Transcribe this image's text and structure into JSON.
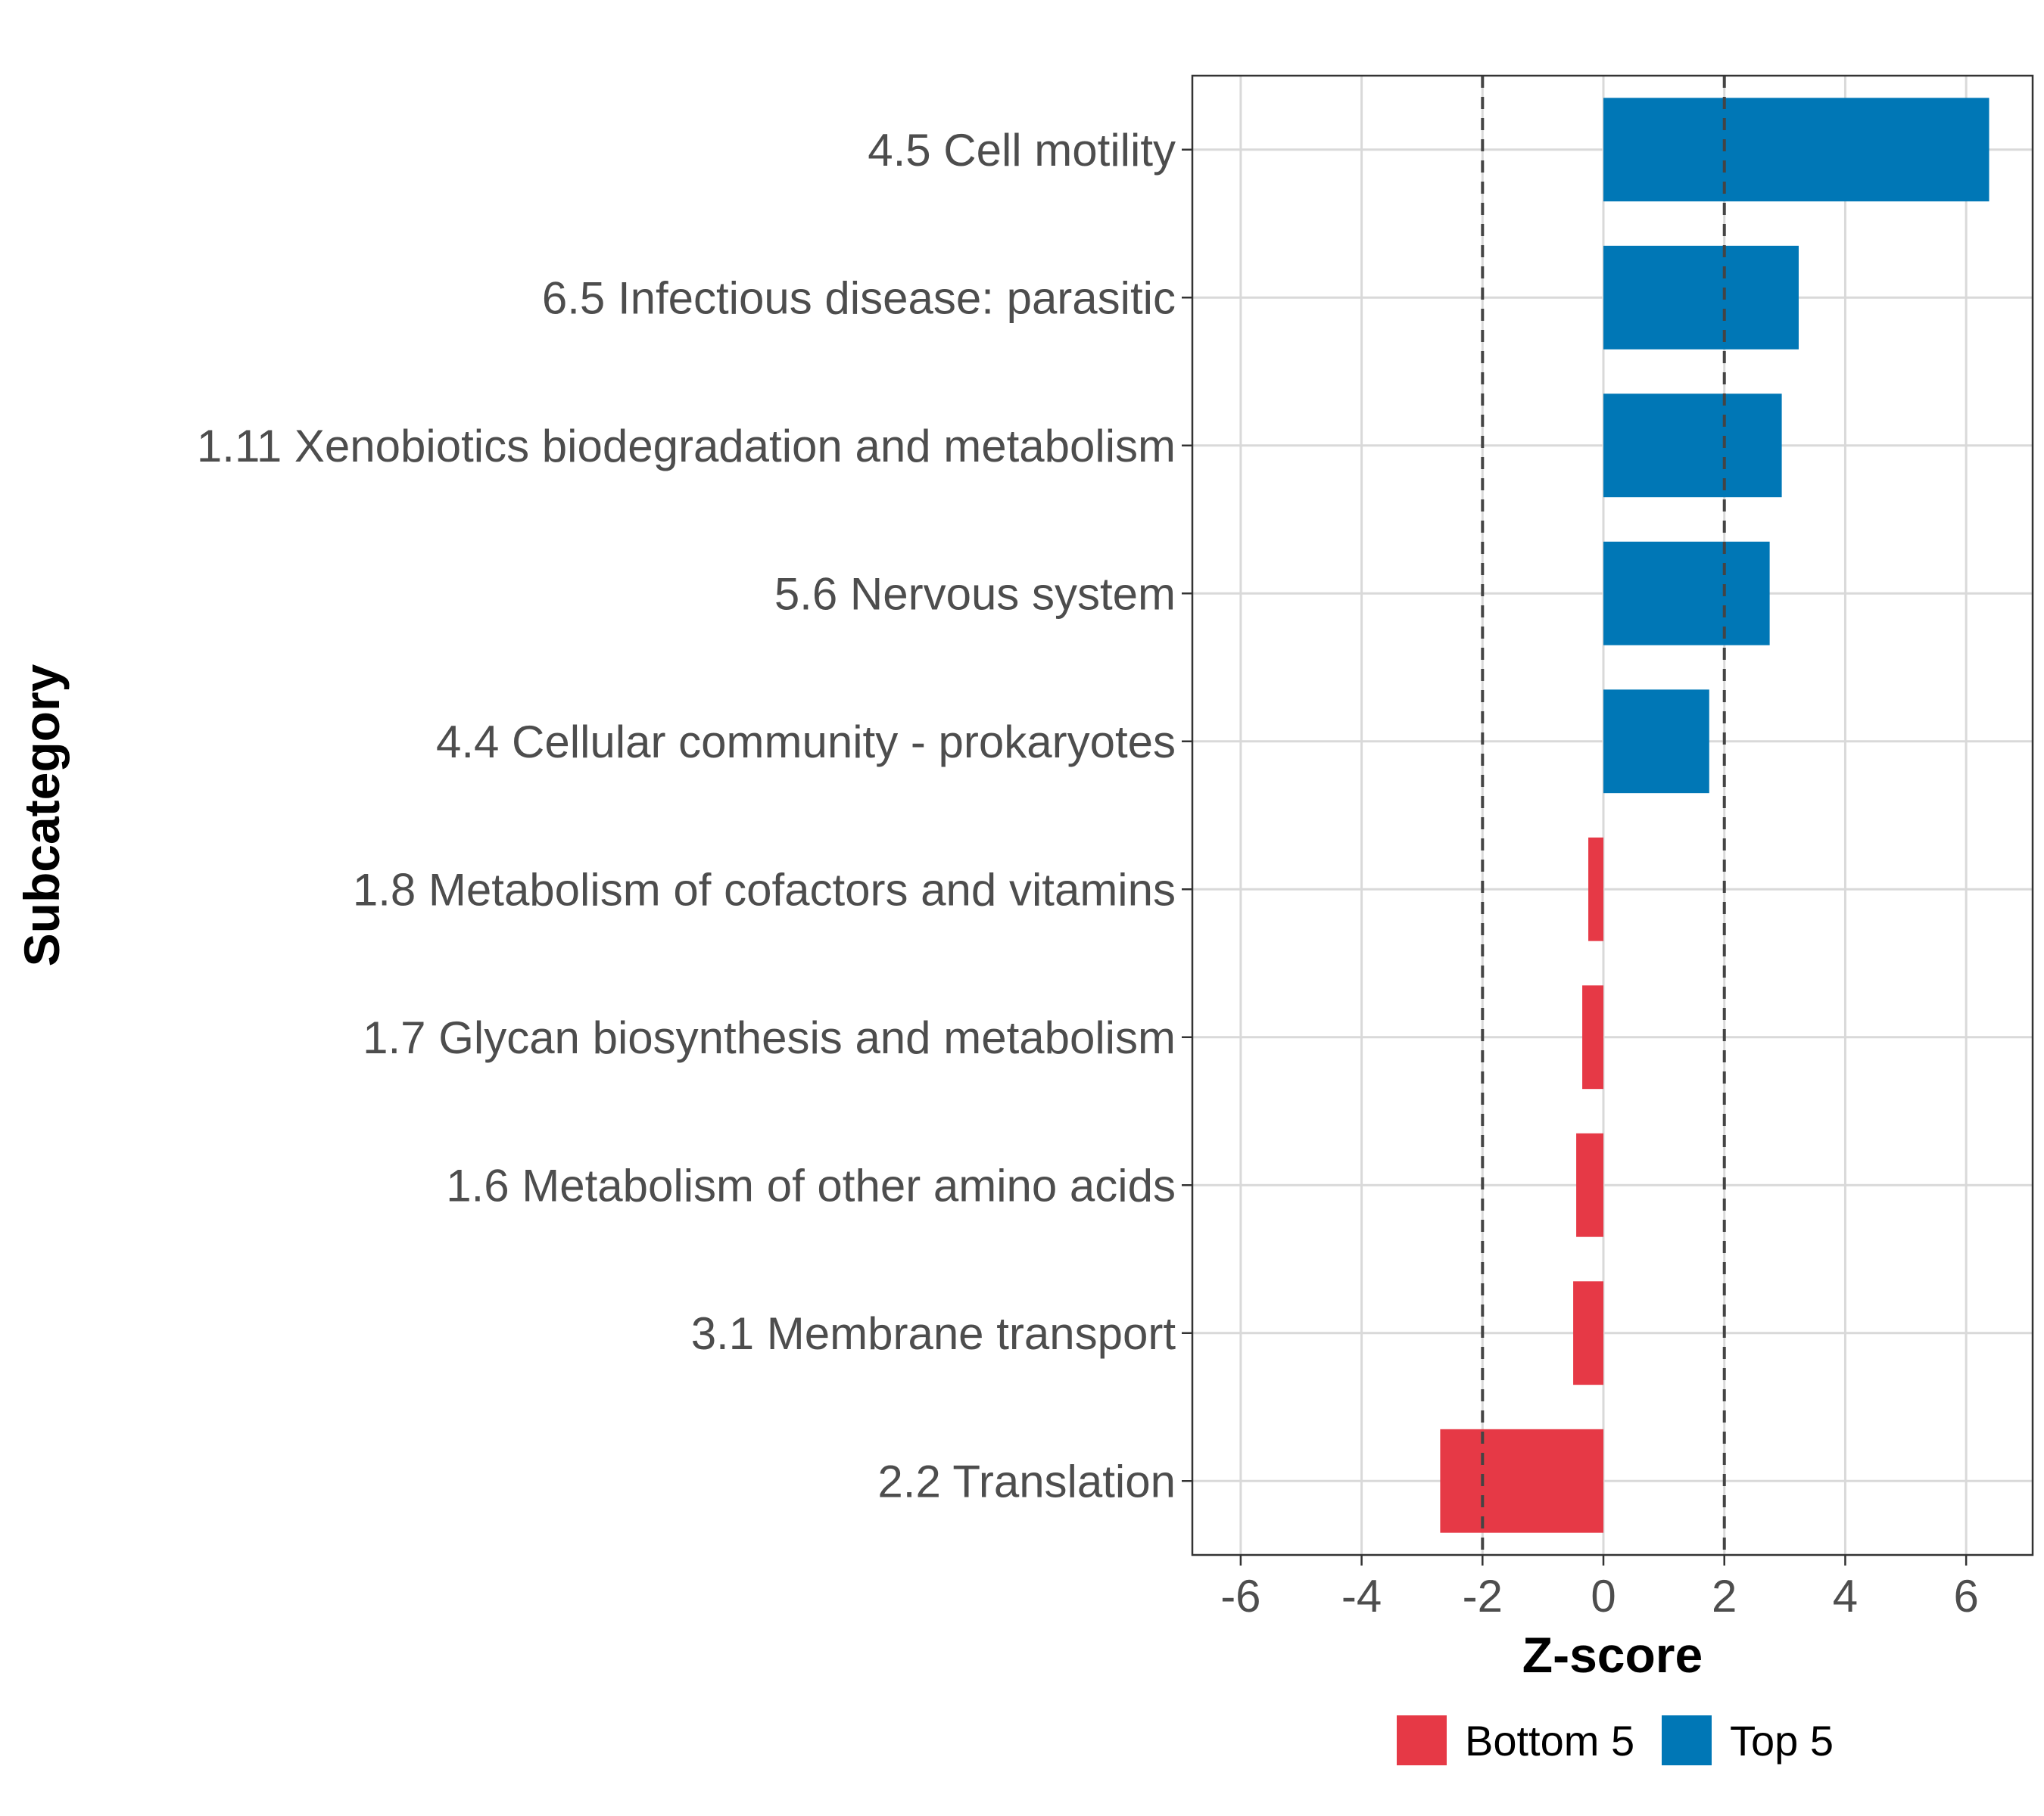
{
  "chart_data": {
    "type": "bar",
    "orientation": "horizontal",
    "title": "",
    "xlabel": "Z-score",
    "ylabel": "Subcategory",
    "xlim": [
      -6.8,
      7.1
    ],
    "xticks": [
      -6,
      -4,
      -2,
      0,
      2,
      4,
      6
    ],
    "xtick_labels": [
      "-6",
      "-4",
      "-2",
      "0",
      "2",
      "4",
      "6"
    ],
    "reference_lines": [
      -2,
      2
    ],
    "grid": true,
    "categories": [
      "4.5 Cell motility",
      "6.5 Infectious disease: parasitic",
      "1.11 Xenobiotics biodegradation and metabolism",
      "5.6 Nervous system",
      "4.4 Cellular community - prokaryotes",
      "1.8 Metabolism of cofactors and vitamins",
      "1.7 Glycan biosynthesis and metabolism",
      "1.6 Metabolism of other amino acids",
      "3.1 Membrane transport",
      "2.2 Translation"
    ],
    "values": [
      6.38,
      3.23,
      2.95,
      2.75,
      1.75,
      -0.25,
      -0.35,
      -0.45,
      -0.5,
      -2.7
    ],
    "groups": [
      "Top 5",
      "Top 5",
      "Top 5",
      "Top 5",
      "Top 5",
      "Bottom 5",
      "Bottom 5",
      "Bottom 5",
      "Bottom 5",
      "Bottom 5"
    ],
    "legend": [
      {
        "label": "Bottom 5",
        "color": "#e63946"
      },
      {
        "label": "Top 5",
        "color": "#0077b6"
      }
    ],
    "legend_position": "bottom"
  }
}
